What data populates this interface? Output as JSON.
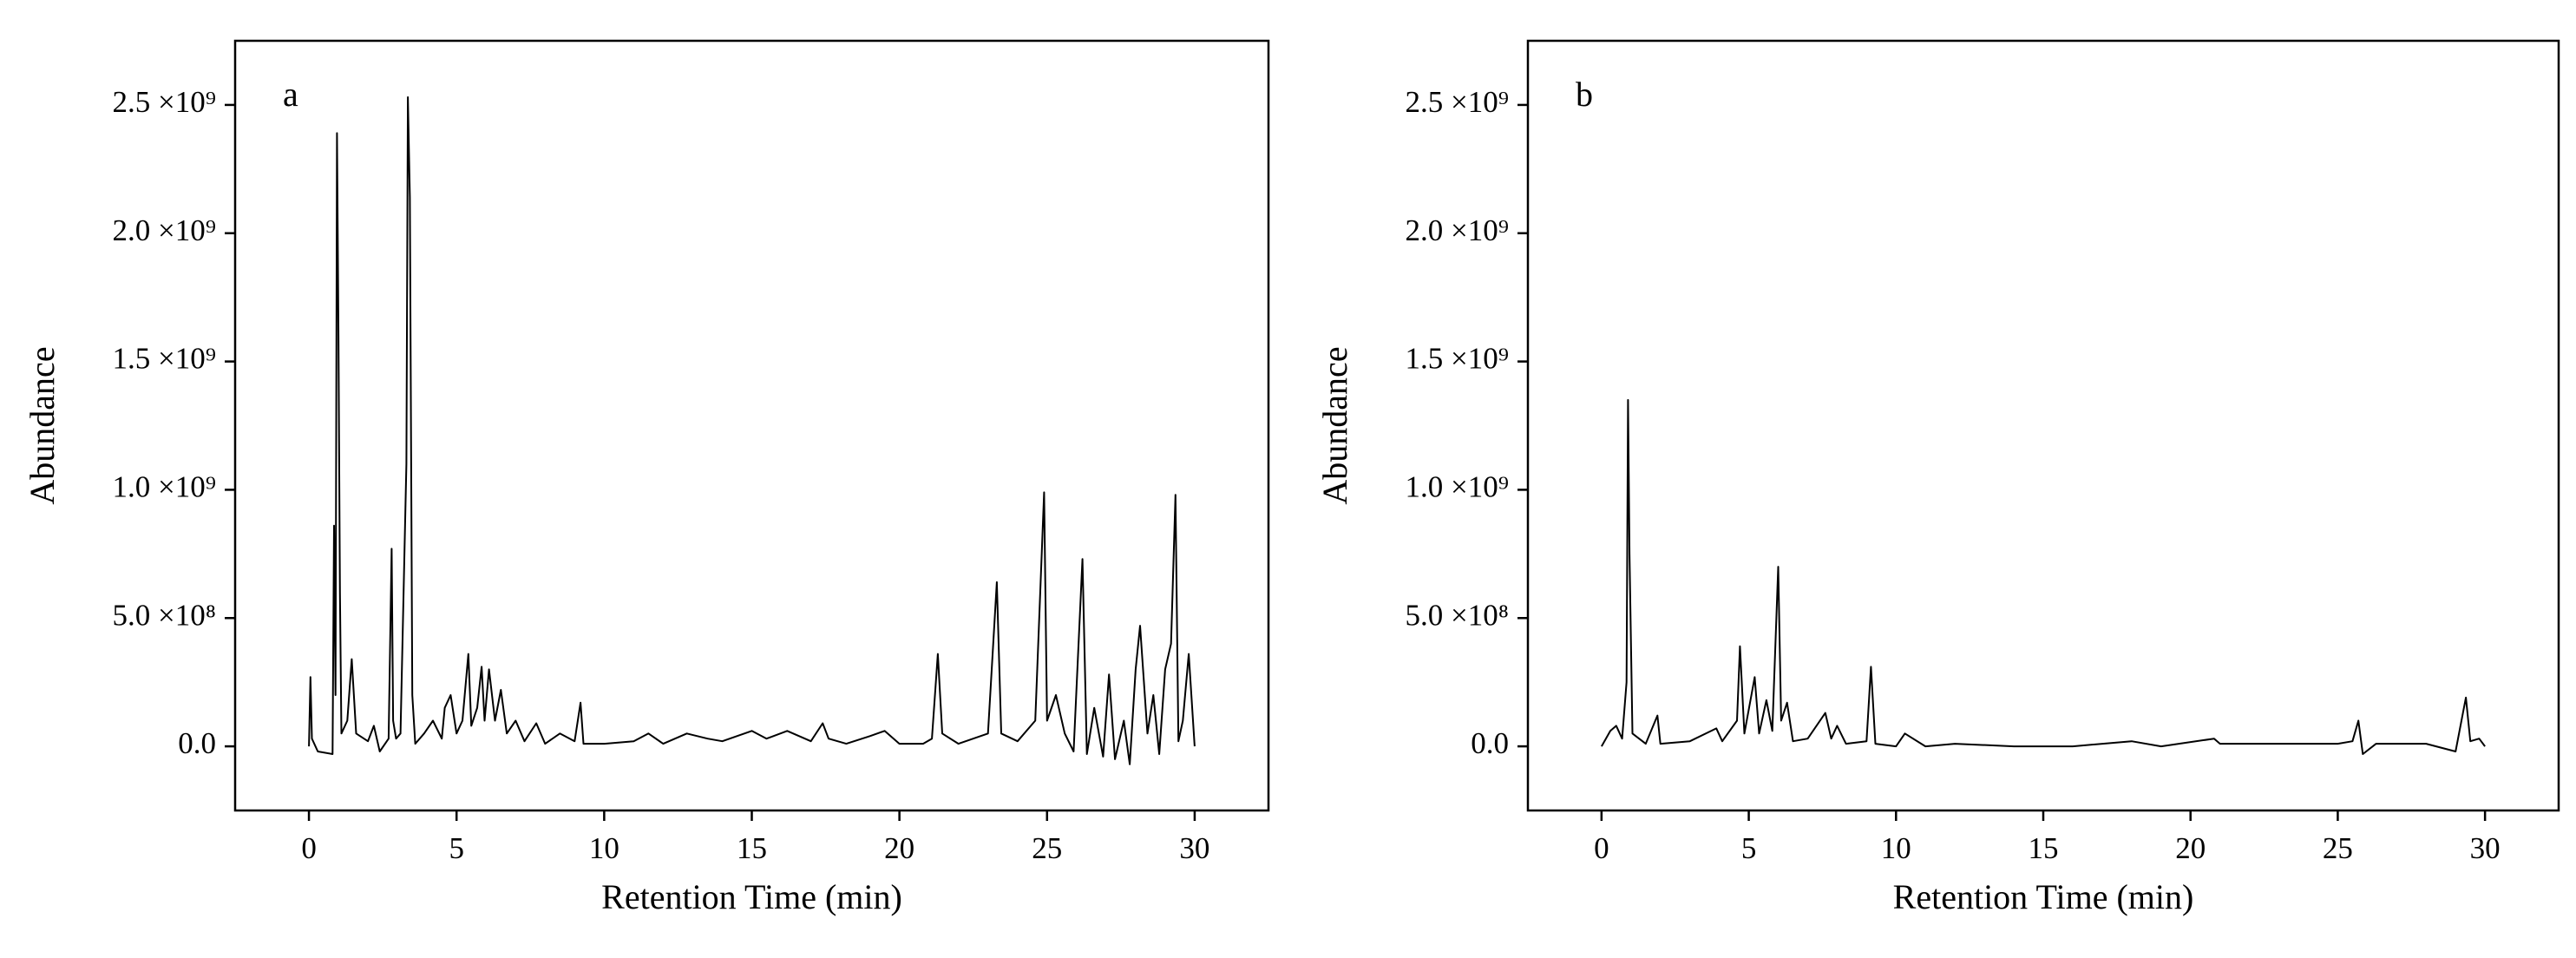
{
  "chart_data": [
    {
      "type": "line",
      "panel_label": "a",
      "x_label": "Retention Time (min)",
      "y_label": "Abundance",
      "xlim": [
        -2.5,
        32.5
      ],
      "ylim": [
        -250000000.0,
        2750000000.0
      ],
      "xticks": [
        0,
        5,
        10,
        15,
        20,
        25,
        30
      ],
      "yticks": [
        {
          "value": 0,
          "label": "0.0"
        },
        {
          "value": 500000000.0,
          "label": "5.0 ×10⁸"
        },
        {
          "value": 1000000000.0,
          "label": "1.0 ×10⁹"
        },
        {
          "value": 1500000000.0,
          "label": "1.5 ×10⁹"
        },
        {
          "value": 2000000000.0,
          "label": "2.0 ×10⁹"
        },
        {
          "value": 2500000000.0,
          "label": "2.5 ×10⁹"
        }
      ],
      "x": [
        0,
        0.05,
        0.1,
        0.3,
        0.8,
        0.85,
        0.9,
        0.95,
        1.0,
        1.05,
        1.1,
        1.3,
        1.45,
        1.6,
        2.0,
        2.2,
        2.4,
        2.7,
        2.8,
        2.85,
        2.95,
        3.1,
        3.3,
        3.35,
        3.42,
        3.5,
        3.6,
        3.9,
        4.2,
        4.5,
        4.6,
        4.8,
        5.0,
        5.2,
        5.4,
        5.5,
        5.7,
        5.85,
        5.95,
        6.1,
        6.3,
        6.5,
        6.7,
        7.0,
        7.3,
        7.7,
        8.0,
        8.5,
        9.0,
        9.2,
        9.3,
        10,
        11,
        11.5,
        12,
        12.8,
        13.5,
        14,
        15,
        15.5,
        16.2,
        17,
        17.4,
        17.6,
        18.2,
        19,
        19.5,
        20,
        20.8,
        21.1,
        21.3,
        21.45,
        22,
        23,
        23.3,
        23.45,
        24,
        24.6,
        24.9,
        25.0,
        25.3,
        25.6,
        25.9,
        26.2,
        26.35,
        26.6,
        26.9,
        27.1,
        27.3,
        27.6,
        27.8,
        28.0,
        28.15,
        28.4,
        28.6,
        28.8,
        29.0,
        29.2,
        29.35,
        29.45,
        29.6,
        29.8,
        30
      ],
      "series": [
        {
          "color": "#000000",
          "values": [
            0,
            270000000.0,
            30000000.0,
            -20000000.0,
            -30000000.0,
            860000000.0,
            200000000.0,
            2390000000.0,
            1600000000.0,
            600000000.0,
            50000000.0,
            100000000.0,
            340000000.0,
            50000000.0,
            20000000.0,
            80000000.0,
            -20000000.0,
            30000000.0,
            770000000.0,
            100000000.0,
            30000000.0,
            50000000.0,
            1100000000.0,
            2530000000.0,
            2140000000.0,
            200000000.0,
            10000000.0,
            50000000.0,
            100000000.0,
            30000000.0,
            150000000.0,
            200000000.0,
            50000000.0,
            100000000.0,
            360000000.0,
            80000000.0,
            150000000.0,
            310000000.0,
            100000000.0,
            300000000.0,
            100000000.0,
            220000000.0,
            50000000.0,
            100000000.0,
            20000000.0,
            90000000.0,
            10000000.0,
            50000000.0,
            20000000.0,
            170000000.0,
            10000000.0,
            10000000.0,
            20000000.0,
            50000000.0,
            10000000.0,
            50000000.0,
            30000000.0,
            20000000.0,
            60000000.0,
            30000000.0,
            60000000.0,
            20000000.0,
            90000000.0,
            30000000.0,
            10000000.0,
            40000000.0,
            60000000.0,
            10000000.0,
            10000000.0,
            30000000.0,
            360000000.0,
            50000000.0,
            10000000.0,
            50000000.0,
            640000000.0,
            50000000.0,
            20000000.0,
            100000000.0,
            990000000.0,
            100000000.0,
            200000000.0,
            50000000.0,
            -20000000.0,
            730000000.0,
            -30000000.0,
            150000000.0,
            -40000000.0,
            280000000.0,
            -50000000.0,
            100000000.0,
            -70000000.0,
            300000000.0,
            470000000.0,
            50000000.0,
            200000000.0,
            -30000000.0,
            300000000.0,
            400000000.0,
            980000000.0,
            20000000.0,
            100000000.0,
            360000000.0,
            0
          ]
        }
      ]
    },
    {
      "type": "line",
      "panel_label": "b",
      "x_label": "Retention Time (min)",
      "y_label": "Abundance",
      "xlim": [
        -2.5,
        32.5
      ],
      "ylim": [
        -250000000.0,
        2750000000.0
      ],
      "xticks": [
        0,
        5,
        10,
        15,
        20,
        25,
        30
      ],
      "yticks": [
        {
          "value": 0,
          "label": "0.0"
        },
        {
          "value": 500000000.0,
          "label": "5.0 ×10⁸"
        },
        {
          "value": 1000000000.0,
          "label": "1.0 ×10⁹"
        },
        {
          "value": 1500000000.0,
          "label": "1.5 ×10⁹"
        },
        {
          "value": 2000000000.0,
          "label": "2.0 ×10⁹"
        },
        {
          "value": 2500000000.0,
          "label": "2.5 ×10⁹"
        }
      ],
      "x": [
        0,
        0.3,
        0.5,
        0.7,
        0.85,
        0.9,
        0.95,
        1.05,
        1.5,
        1.9,
        2.0,
        3,
        3.9,
        4.1,
        4.6,
        4.7,
        4.85,
        5.2,
        5.35,
        5.6,
        5.8,
        6.0,
        6.1,
        6.3,
        6.5,
        7.0,
        7.6,
        7.8,
        8.0,
        8.3,
        9.0,
        9.15,
        9.3,
        10,
        10.3,
        11,
        12,
        14,
        16,
        18,
        19,
        20.8,
        21,
        23,
        25,
        25.5,
        25.7,
        25.85,
        26.3,
        28,
        29,
        29.25,
        29.35,
        29.5,
        29.8,
        30
      ],
      "series": [
        {
          "color": "#000000",
          "values": [
            0,
            60000000.0,
            80000000.0,
            30000000.0,
            250000000.0,
            1350000000.0,
            750000000.0,
            50000000.0,
            10000000.0,
            120000000.0,
            10000000.0,
            20000000.0,
            70000000.0,
            20000000.0,
            100000000.0,
            390000000.0,
            50000000.0,
            270000000.0,
            50000000.0,
            180000000.0,
            60000000.0,
            700000000.0,
            100000000.0,
            170000000.0,
            20000000.0,
            30000000.0,
            130000000.0,
            30000000.0,
            80000000.0,
            10000000.0,
            20000000.0,
            310000000.0,
            10000000.0,
            0,
            50000000.0,
            0,
            10000000.0,
            0,
            0,
            20000000.0,
            0,
            30000000.0,
            10000000.0,
            10000000.0,
            10000000.0,
            20000000.0,
            100000000.0,
            -30000000.0,
            10000000.0,
            10000000.0,
            -20000000.0,
            130000000.0,
            190000000.0,
            20000000.0,
            30000000.0,
            0
          ]
        }
      ]
    }
  ]
}
